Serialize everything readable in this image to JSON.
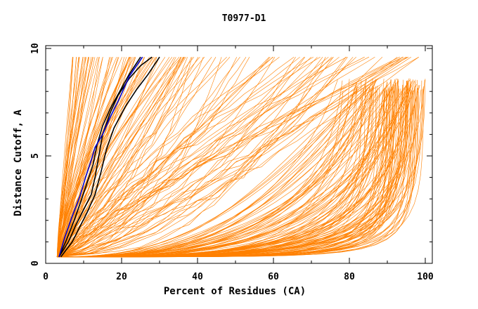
{
  "chart_data": {
    "type": "line",
    "title": "T0977-D1",
    "xlabel": "Percent of Residues (CA)",
    "ylabel": "Distance Cutoff, A",
    "xlim": [
      0,
      100
    ],
    "ylim": [
      0,
      10
    ],
    "xticks": [
      "0",
      "20",
      "40",
      "60",
      "80",
      "100"
    ],
    "yticks": [
      "0",
      "5",
      "10"
    ],
    "grid": false,
    "legend": "none",
    "colors": {
      "background_models": "#ff8000",
      "highlight_black": "#000000",
      "highlight_blue": "#0000cc"
    },
    "highlighted_series": [
      {
        "color": "#000000",
        "x": [
          3.5,
          6,
          8,
          10,
          12,
          13,
          14,
          15,
          17,
          19,
          22,
          25,
          28
        ],
        "y": [
          0.3,
          1,
          1.8,
          2.5,
          3.2,
          4,
          5,
          6,
          7,
          7.8,
          8.6,
          9.2,
          9.6
        ]
      },
      {
        "color": "#000000",
        "x": [
          4,
          7,
          9,
          11,
          13,
          14.5,
          16,
          18,
          21,
          24,
          27,
          30
        ],
        "y": [
          0.3,
          1,
          1.7,
          2.4,
          3.2,
          4.2,
          5.3,
          6.3,
          7.3,
          8.1,
          8.8,
          9.6
        ]
      },
      {
        "color": "#000000",
        "x": [
          3.5,
          5.5,
          7.5,
          9.5,
          11,
          12.5,
          13.5,
          15,
          17,
          19.5,
          22,
          25
        ],
        "y": [
          0.3,
          1.1,
          2,
          3,
          3.8,
          4.6,
          5.5,
          6.4,
          7.2,
          8,
          8.8,
          9.6
        ]
      },
      {
        "color": "#0000cc",
        "x": [
          3.5,
          5,
          7,
          9,
          10.5,
          12,
          13,
          15,
          17,
          19.5,
          22,
          25.5
        ],
        "y": [
          0.3,
          1.2,
          2.2,
          3.1,
          4,
          4.8,
          5.4,
          6,
          6.8,
          7.7,
          8.7,
          9.6
        ]
      }
    ]
  }
}
